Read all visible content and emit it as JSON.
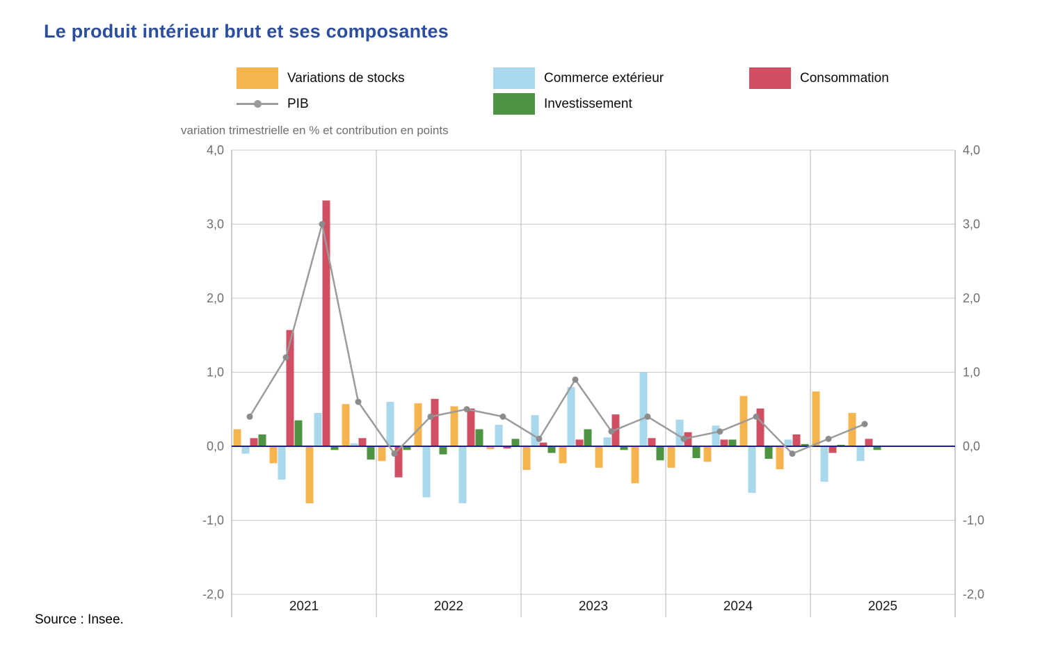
{
  "page": {
    "title": "Le produit intérieur brut et ses composantes",
    "source": "Source : Insee."
  },
  "legend": {
    "items": [
      {
        "label": "Variations de stocks",
        "color": "#F5B44E",
        "type": "swatch"
      },
      {
        "label": "Commerce extérieur",
        "color": "#A9D7EC",
        "type": "swatch"
      },
      {
        "label": "Consommation",
        "color": "#D04F63",
        "type": "swatch"
      },
      {
        "label": "PIB",
        "color": "#9b9b9b",
        "type": "line"
      },
      {
        "label": "Investissement",
        "color": "#4D9343",
        "type": "swatch"
      }
    ]
  },
  "chart_data": {
    "type": "bar",
    "title": "Le produit intérieur brut et ses composantes",
    "subtitle": "variation trimestrielle en % et contribution en points",
    "years": [
      "2021",
      "2022",
      "2023",
      "2024",
      "2025"
    ],
    "quarters_per_year": 4,
    "data_through": "2025 T2",
    "ylim": [
      -2.0,
      4.0
    ],
    "yticks": [
      4.0,
      3.0,
      2.0,
      1.0,
      0.0,
      -1.0,
      -2.0
    ],
    "ytick_labels": [
      "4,0",
      "3,0",
      "2,0",
      "1,0",
      "0,0",
      "-1,0",
      "-2,0"
    ],
    "grid": true,
    "zero_line_color": "#1b1ba8",
    "bar_series": [
      {
        "name": "Variations de stocks",
        "color": "#F5B44E",
        "values": [
          0.23,
          -0.23,
          -0.77,
          0.57,
          -0.2,
          0.58,
          0.54,
          -0.04,
          -0.32,
          -0.23,
          -0.29,
          -0.5,
          -0.29,
          -0.21,
          0.68,
          -0.31,
          0.74,
          0.45
        ]
      },
      {
        "name": "Commerce extérieur",
        "color": "#A9D7EC",
        "values": [
          -0.1,
          -0.45,
          0.45,
          0.04,
          0.6,
          -0.69,
          -0.77,
          0.29,
          0.42,
          0.8,
          0.12,
          1.0,
          0.36,
          0.28,
          -0.63,
          0.09,
          -0.48,
          -0.2
        ]
      },
      {
        "name": "Consommation",
        "color": "#D04F63",
        "values": [
          0.11,
          1.57,
          3.32,
          0.11,
          -0.42,
          0.64,
          0.51,
          -0.03,
          0.05,
          0.09,
          0.43,
          0.11,
          0.19,
          0.09,
          0.51,
          0.16,
          -0.09,
          0.1
        ]
      },
      {
        "name": "Investissement",
        "color": "#4D9343",
        "values": [
          0.16,
          0.35,
          -0.05,
          -0.18,
          -0.05,
          -0.11,
          0.23,
          0.1,
          -0.09,
          0.23,
          -0.05,
          -0.19,
          -0.16,
          0.09,
          -0.17,
          0.03,
          0.02,
          -0.05
        ]
      }
    ],
    "line_series": {
      "name": "PIB",
      "color": "#9b9b9b",
      "marker_color": "#8c8c8c",
      "values": [
        0.4,
        1.2,
        3.0,
        0.6,
        -0.1,
        0.4,
        0.5,
        0.4,
        0.1,
        0.9,
        0.2,
        0.4,
        0.1,
        0.2,
        0.4,
        -0.1,
        0.1,
        0.3
      ]
    },
    "legend_position": "top"
  }
}
